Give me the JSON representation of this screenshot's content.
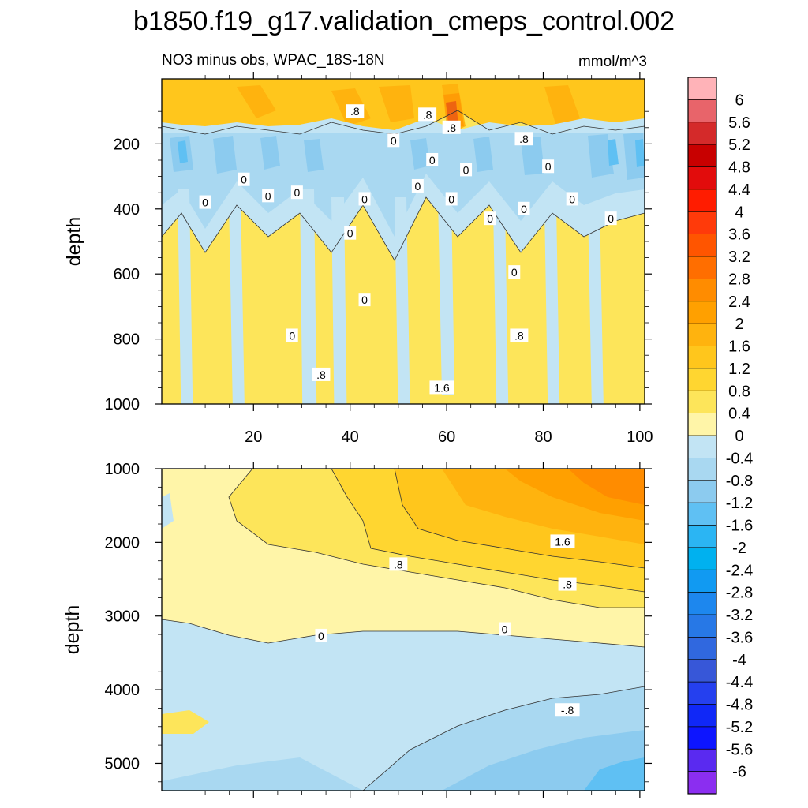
{
  "title": "b1850.f19_g17.validation_cmeps_control.002",
  "subtitle_left": "NO3 minus obs, WPAC_18S-18N",
  "subtitle_right": "mmol/m^3",
  "chart_data": [
    {
      "type": "heatmap",
      "name": "upper",
      "ylabel": "depth",
      "xlim": [
        1,
        101
      ],
      "ylim": [
        1000,
        0
      ],
      "xticks": [
        20,
        40,
        60,
        80,
        100
      ],
      "yticks": [
        200,
        400,
        600,
        800,
        1000
      ],
      "contour_labels": [
        {
          "text": ".8",
          "x": 41,
          "y": 100
        },
        {
          "text": ".8",
          "x": 56,
          "y": 110
        },
        {
          "text": ".8",
          "x": 61,
          "y": 150
        },
        {
          "text": ".8",
          "x": 76,
          "y": 185
        },
        {
          "text": "0",
          "x": 49,
          "y": 190
        },
        {
          "text": "0",
          "x": 57,
          "y": 250
        },
        {
          "text": "0",
          "x": 64,
          "y": 280
        },
        {
          "text": "0",
          "x": 81,
          "y": 270
        },
        {
          "text": "0",
          "x": 18,
          "y": 310
        },
        {
          "text": "0",
          "x": 54,
          "y": 330
        },
        {
          "text": "0",
          "x": 23,
          "y": 360
        },
        {
          "text": "0",
          "x": 29,
          "y": 350
        },
        {
          "text": "0",
          "x": 10,
          "y": 380
        },
        {
          "text": "0",
          "x": 43,
          "y": 370
        },
        {
          "text": "0",
          "x": 61,
          "y": 370
        },
        {
          "text": "0",
          "x": 86,
          "y": 370
        },
        {
          "text": "0",
          "x": 76,
          "y": 400
        },
        {
          "text": "0",
          "x": 69,
          "y": 430
        },
        {
          "text": "0",
          "x": 94,
          "y": 430
        },
        {
          "text": "0",
          "x": 40,
          "y": 475
        },
        {
          "text": "0",
          "x": 74,
          "y": 595
        },
        {
          "text": "0",
          "x": 43,
          "y": 680
        },
        {
          "text": "0",
          "x": 28,
          "y": 790
        },
        {
          "text": ".8",
          "x": 75,
          "y": 790
        },
        {
          "text": ".8",
          "x": 34,
          "y": 910
        },
        {
          "text": "1.6",
          "x": 59,
          "y": 950
        }
      ]
    },
    {
      "type": "heatmap",
      "name": "lower",
      "ylabel": "depth",
      "xlim": [
        1,
        101
      ],
      "ylim": [
        5370,
        1000
      ],
      "xticks": [
        20,
        40,
        60,
        80,
        100
      ],
      "yticks": [
        1000,
        2000,
        3000,
        4000,
        5000
      ],
      "contour_labels": [
        {
          "text": "1.6",
          "x": 84,
          "y": 1990
        },
        {
          "text": ".8",
          "x": 50,
          "y": 2300
        },
        {
          "text": ".8",
          "x": 85,
          "y": 2570
        },
        {
          "text": "0",
          "x": 34,
          "y": 3270
        },
        {
          "text": "0",
          "x": 72,
          "y": 3180
        },
        {
          "text": "-.8",
          "x": 85,
          "y": 4280
        }
      ]
    }
  ],
  "colorbar": {
    "levels": [
      "6",
      "5.6",
      "5.2",
      "4.8",
      "4.4",
      "4",
      "3.6",
      "3.2",
      "2.8",
      "2.4",
      "2",
      "1.6",
      "1.2",
      "0.8",
      "0.4",
      "0",
      "-0.4",
      "-0.8",
      "-1.2",
      "-1.6",
      "-2",
      "-2.4",
      "-2.8",
      "-3.2",
      "-3.6",
      "-4",
      "-4.4",
      "-4.8",
      "-5.2",
      "-5.6",
      "-6"
    ],
    "colors": [
      "#ffb3b8",
      "#e8646a",
      "#d42a2a",
      "#c80000",
      "#e20c0c",
      "#ff1c00",
      "#ff3a0a",
      "#ff5500",
      "#ff6e00",
      "#ff8c00",
      "#ffa000",
      "#ffb30e",
      "#ffc61c",
      "#ffd630",
      "#fde55a",
      "#fff5a8",
      "#c2e4f4",
      "#a9d8f1",
      "#8ccbef",
      "#5fc0f3",
      "#2bb5f3",
      "#00b1ef",
      "#119af2",
      "#1d87ee",
      "#2778e6",
      "#3068df",
      "#3757d8",
      "#2540ef",
      "#1028f7",
      "#0d15ff",
      "#5a2af0",
      "#8b2ef0"
    ]
  }
}
